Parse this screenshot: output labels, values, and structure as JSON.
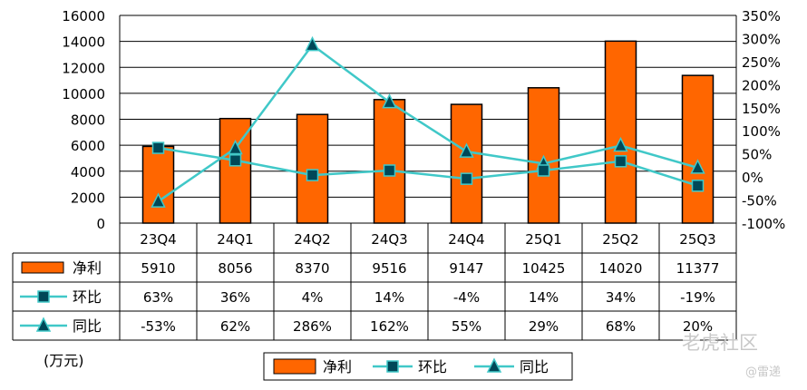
{
  "chart_data": {
    "type": "bar",
    "categories": [
      "23Q4",
      "24Q1",
      "24Q2",
      "24Q3",
      "24Q4",
      "25Q1",
      "25Q2",
      "25Q3"
    ],
    "series": [
      {
        "name": "净利",
        "kind": "bar",
        "axis": "left",
        "values": [
          5910,
          8056,
          8370,
          9516,
          9147,
          10425,
          14020,
          11377
        ],
        "table_labels": [
          "5910",
          "8056",
          "8370",
          "9516",
          "9147",
          "10425",
          "14020",
          "11377"
        ]
      },
      {
        "name": "环比",
        "kind": "line",
        "axis": "right",
        "marker": "square",
        "values": [
          63,
          36,
          4,
          14,
          -4,
          14,
          34,
          -19
        ],
        "table_labels": [
          "63%",
          "36%",
          "4%",
          "14%",
          "-4%",
          "14%",
          "34%",
          "-19%"
        ]
      },
      {
        "name": "同比",
        "kind": "line",
        "axis": "right",
        "marker": "triangle",
        "values": [
          -53,
          62,
          286,
          162,
          55,
          29,
          68,
          20
        ],
        "table_labels": [
          "-53%",
          "62%",
          "286%",
          "162%",
          "55%",
          "29%",
          "68%",
          "20%"
        ]
      }
    ],
    "left_axis": {
      "ylim": [
        0,
        16000
      ],
      "ticks": [
        "0",
        "2000",
        "4000",
        "6000",
        "8000",
        "10000",
        "12000",
        "14000",
        "16000"
      ]
    },
    "right_axis": {
      "ylim": [
        -100,
        350
      ],
      "ticks": [
        "-100%",
        "-50%",
        "0%",
        "50%",
        "100%",
        "150%",
        "200%",
        "250%",
        "300%",
        "350%"
      ]
    },
    "unit_label": "(万元)",
    "legend": [
      "净利",
      "环比",
      "同比"
    ],
    "legend_position": "bottom-center"
  },
  "colors": {
    "bar": "#ff6600",
    "line": "#40c8c8",
    "marker": "#004858",
    "grid": "#000000"
  },
  "watermark": {
    "site": "老虎社区",
    "author": "@雷递"
  }
}
